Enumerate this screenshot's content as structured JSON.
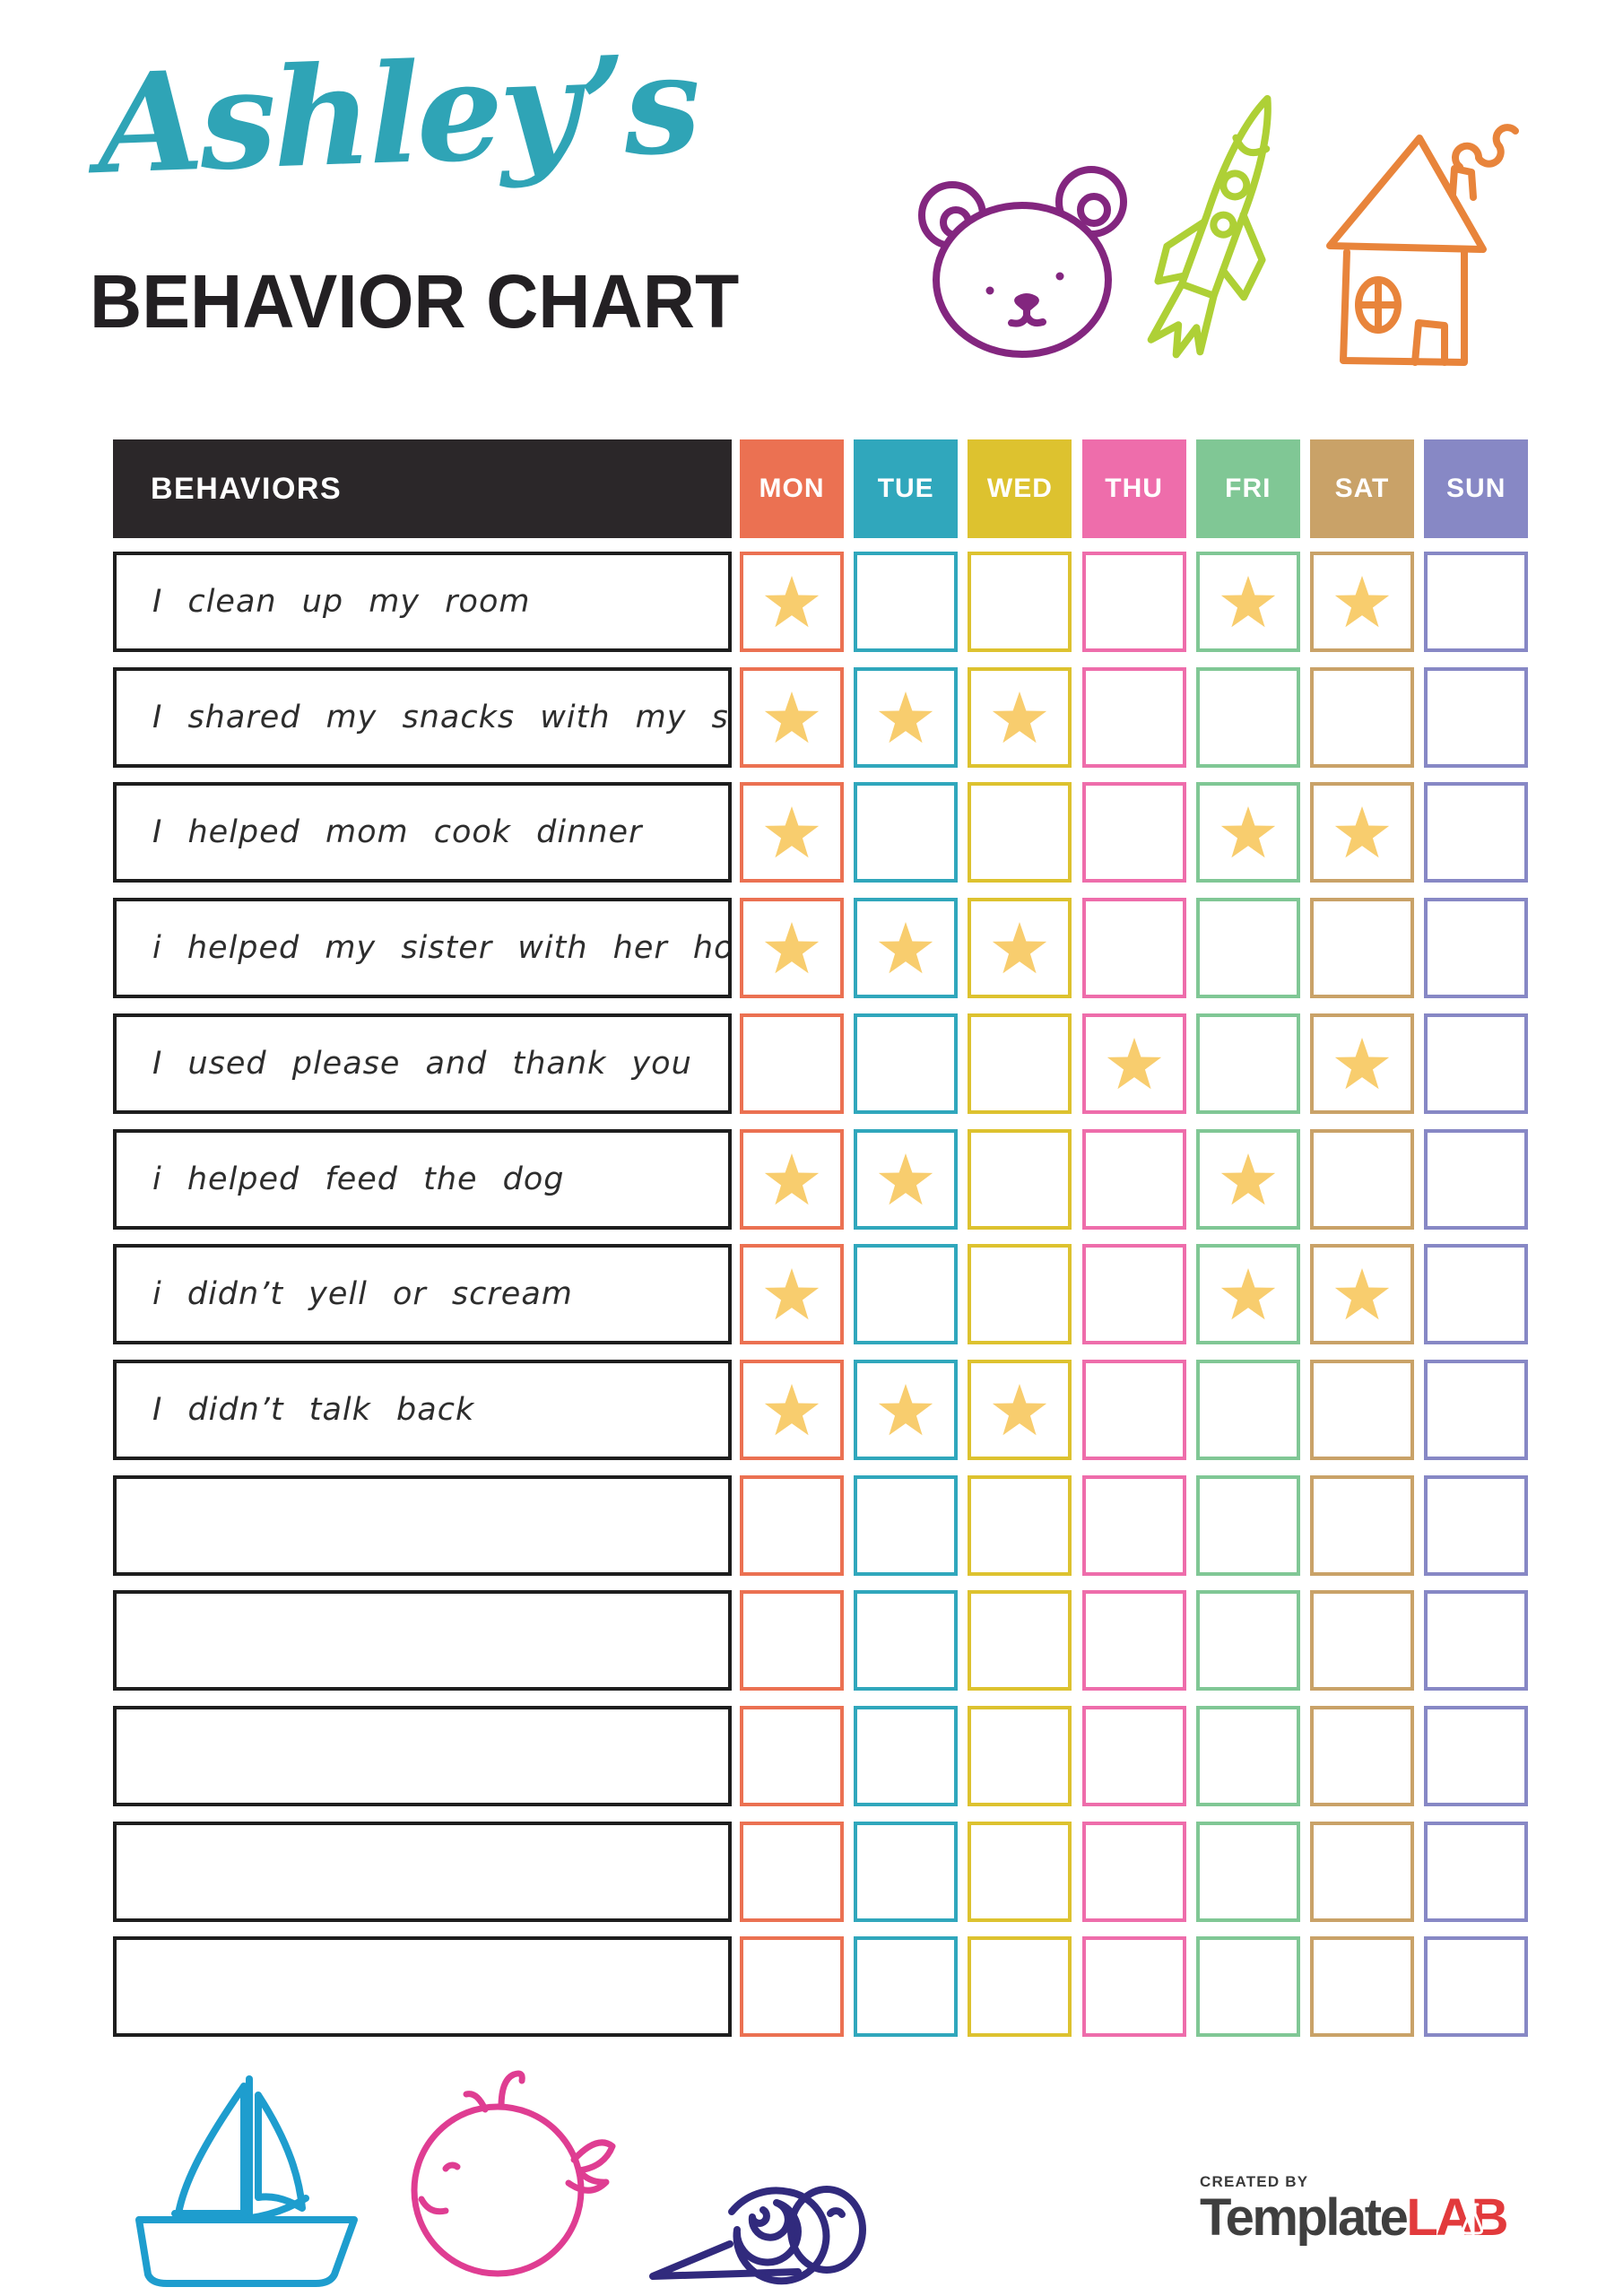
{
  "title": {
    "script": "Ashley’s",
    "main": "BEHAVIOR CHART"
  },
  "table": {
    "behaviors_header": "BEHAVIORS",
    "days": [
      {
        "label": "MON",
        "color": "#eb7152"
      },
      {
        "label": "TUE",
        "color": "#30a7bc"
      },
      {
        "label": "WED",
        "color": "#ddc22f"
      },
      {
        "label": "THU",
        "color": "#ee6dab"
      },
      {
        "label": "FRI",
        "color": "#80c795"
      },
      {
        "label": "SAT",
        "color": "#c9a268"
      },
      {
        "label": "SUN",
        "color": "#8788c5"
      }
    ],
    "rows": [
      {
        "label": "I clean up my room",
        "stars": [
          "MON",
          "FRI",
          "SAT"
        ]
      },
      {
        "label": "I shared my snacks with my sister",
        "stars": [
          "MON",
          "TUE",
          "WED"
        ]
      },
      {
        "label": "I helped mom cook dinner",
        "stars": [
          "MON",
          "FRI",
          "SAT"
        ]
      },
      {
        "label": "i helped my sister with her homework",
        "stars": [
          "MON",
          "TUE",
          "WED"
        ]
      },
      {
        "label": "I used please and thank you",
        "stars": [
          "THU",
          "SAT"
        ]
      },
      {
        "label": "i helped feed the dog",
        "stars": [
          "MON",
          "TUE",
          "FRI"
        ]
      },
      {
        "label": "i didn’t yell or scream",
        "stars": [
          "MON",
          "FRI",
          "SAT"
        ]
      },
      {
        "label": "I didn’t talk back",
        "stars": [
          "MON",
          "TUE",
          "WED"
        ]
      },
      {
        "label": "",
        "stars": []
      },
      {
        "label": "",
        "stars": []
      },
      {
        "label": "",
        "stars": []
      },
      {
        "label": "",
        "stars": []
      },
      {
        "label": "",
        "stars": []
      }
    ]
  },
  "colors": {
    "star": "#f8cd6e",
    "script_title": "#2fa4b6",
    "bear": "#83267f",
    "rocket": "#aed036",
    "house": "#e8843b",
    "sailboat": "#1e9dce",
    "whale": "#df3d92",
    "snail": "#312a7d"
  },
  "icons": {
    "top": [
      "bear-icon",
      "rocket-icon",
      "house-icon"
    ],
    "bottom": [
      "sailboat-icon",
      "whale-icon",
      "snail-icon"
    ]
  },
  "footer": {
    "created_by": "CREATED BY",
    "brand_1": "Template",
    "brand_2": "LAB"
  }
}
